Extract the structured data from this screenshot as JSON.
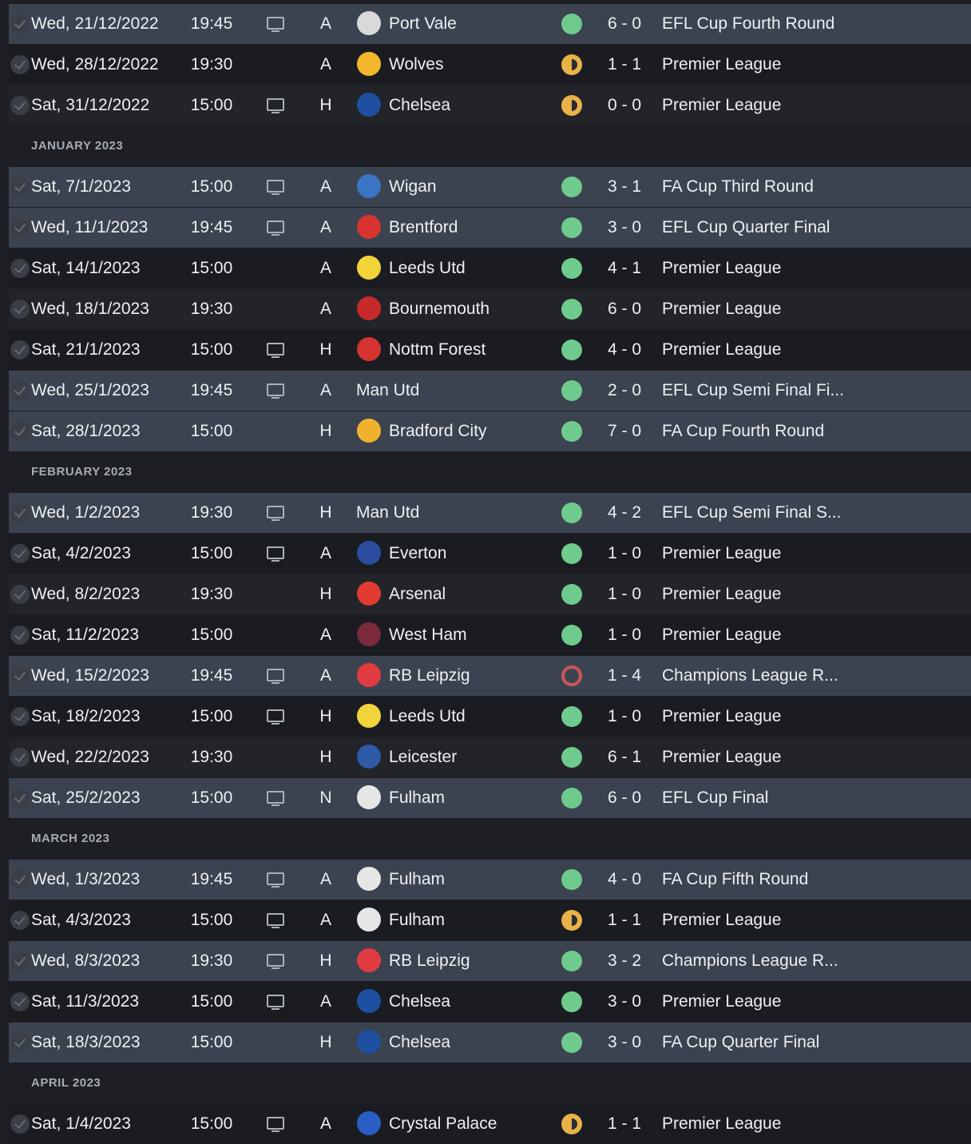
{
  "fixtures": {
    "sections": [
      {
        "month": "",
        "rows": [
          {
            "date": "Wed, 21/12/2022",
            "time": "19:45",
            "tv": true,
            "venue": "A",
            "opponent": "Port Vale",
            "badge_color": "#d9d9d9",
            "result": "win",
            "score": "6 - 0",
            "competition": "EFL Cup Fourth Round",
            "highlight": true
          },
          {
            "date": "Wed, 28/12/2022",
            "time": "19:30",
            "tv": false,
            "venue": "A",
            "opponent": "Wolves",
            "badge_color": "#f2b72a",
            "result": "draw",
            "score": "1 - 1",
            "competition": "Premier League",
            "highlight": false
          },
          {
            "date": "Sat, 31/12/2022",
            "time": "15:00",
            "tv": true,
            "venue": "H",
            "opponent": "Chelsea",
            "badge_color": "#1e4fa0",
            "result": "draw",
            "score": "0 - 0",
            "competition": "Premier League",
            "highlight": false
          }
        ]
      },
      {
        "month": "JANUARY 2023",
        "rows": [
          {
            "date": "Sat, 7/1/2023",
            "time": "15:00",
            "tv": true,
            "venue": "A",
            "opponent": "Wigan",
            "badge_color": "#3a74c4",
            "result": "win",
            "score": "3 - 1",
            "competition": "FA Cup Third Round",
            "highlight": true
          },
          {
            "date": "Wed, 11/1/2023",
            "time": "19:45",
            "tv": true,
            "venue": "A",
            "opponent": "Brentford",
            "badge_color": "#d8342f",
            "result": "win",
            "score": "3 - 0",
            "competition": "EFL Cup Quarter Final",
            "highlight": true
          },
          {
            "date": "Sat, 14/1/2023",
            "time": "15:00",
            "tv": false,
            "venue": "A",
            "opponent": "Leeds Utd",
            "badge_color": "#f1d33a",
            "result": "win",
            "score": "4 - 1",
            "competition": "Premier League",
            "highlight": false
          },
          {
            "date": "Wed, 18/1/2023",
            "time": "19:30",
            "tv": false,
            "venue": "A",
            "opponent": "Bournemouth",
            "badge_color": "#c7282c",
            "result": "win",
            "score": "6 - 0",
            "competition": "Premier League",
            "highlight": false
          },
          {
            "date": "Sat, 21/1/2023",
            "time": "15:00",
            "tv": true,
            "venue": "H",
            "opponent": "Nottm Forest",
            "badge_color": "#d5332f",
            "result": "win",
            "score": "4 - 0",
            "competition": "Premier League",
            "highlight": false
          },
          {
            "date": "Wed, 25/1/2023",
            "time": "19:45",
            "tv": true,
            "venue": "A",
            "opponent": "Man Utd",
            "badge_color": "",
            "result": "win",
            "score": "2 - 0",
            "competition": "EFL Cup Semi Final Fi...",
            "highlight": true
          },
          {
            "date": "Sat, 28/1/2023",
            "time": "15:00",
            "tv": false,
            "venue": "H",
            "opponent": "Bradford City",
            "badge_color": "#f0b22c",
            "result": "win",
            "score": "7 - 0",
            "competition": "FA Cup Fourth Round",
            "highlight": true
          }
        ]
      },
      {
        "month": "FEBRUARY 2023",
        "rows": [
          {
            "date": "Wed, 1/2/2023",
            "time": "19:30",
            "tv": true,
            "venue": "H",
            "opponent": "Man Utd",
            "badge_color": "",
            "result": "win",
            "score": "4 - 2",
            "competition": "EFL Cup Semi Final S...",
            "highlight": true
          },
          {
            "date": "Sat, 4/2/2023",
            "time": "15:00",
            "tv": true,
            "venue": "A",
            "opponent": "Everton",
            "badge_color": "#2a4da0",
            "result": "win",
            "score": "1 - 0",
            "competition": "Premier League",
            "highlight": false
          },
          {
            "date": "Wed, 8/2/2023",
            "time": "19:30",
            "tv": false,
            "venue": "H",
            "opponent": "Arsenal",
            "badge_color": "#e03a33",
            "result": "win",
            "score": "1 - 0",
            "competition": "Premier League",
            "highlight": false
          },
          {
            "date": "Sat, 11/2/2023",
            "time": "15:00",
            "tv": false,
            "venue": "A",
            "opponent": "West Ham",
            "badge_color": "#7a2a3c",
            "result": "win",
            "score": "1 - 0",
            "competition": "Premier League",
            "highlight": false
          },
          {
            "date": "Wed, 15/2/2023",
            "time": "19:45",
            "tv": true,
            "venue": "A",
            "opponent": "RB Leipzig",
            "badge_color": "#e13b42",
            "result": "loss",
            "score": "1 - 4",
            "competition": "Champions League R...",
            "highlight": true
          },
          {
            "date": "Sat, 18/2/2023",
            "time": "15:00",
            "tv": true,
            "venue": "H",
            "opponent": "Leeds Utd",
            "badge_color": "#f1d33a",
            "result": "win",
            "score": "1 - 0",
            "competition": "Premier League",
            "highlight": false
          },
          {
            "date": "Wed, 22/2/2023",
            "time": "19:30",
            "tv": false,
            "venue": "H",
            "opponent": "Leicester",
            "badge_color": "#2e5aa8",
            "result": "win",
            "score": "6 - 1",
            "competition": "Premier League",
            "highlight": false
          },
          {
            "date": "Sat, 25/2/2023",
            "time": "15:00",
            "tv": true,
            "venue": "N",
            "opponent": "Fulham",
            "badge_color": "#e6e6e6",
            "result": "win",
            "score": "6 - 0",
            "competition": "EFL Cup Final",
            "highlight": true
          }
        ]
      },
      {
        "month": "MARCH 2023",
        "rows": [
          {
            "date": "Wed, 1/3/2023",
            "time": "19:45",
            "tv": true,
            "venue": "A",
            "opponent": "Fulham",
            "badge_color": "#e6e6e6",
            "result": "win",
            "score": "4 - 0",
            "competition": "FA Cup Fifth Round",
            "highlight": true
          },
          {
            "date": "Sat, 4/3/2023",
            "time": "15:00",
            "tv": true,
            "venue": "A",
            "opponent": "Fulham",
            "badge_color": "#e6e6e6",
            "result": "draw",
            "score": "1 - 1",
            "competition": "Premier League",
            "highlight": false
          },
          {
            "date": "Wed, 8/3/2023",
            "time": "19:30",
            "tv": true,
            "venue": "H",
            "opponent": "RB Leipzig",
            "badge_color": "#e13b42",
            "result": "win",
            "score": "3 - 2",
            "competition": "Champions League R...",
            "highlight": true
          },
          {
            "date": "Sat, 11/3/2023",
            "time": "15:00",
            "tv": true,
            "venue": "A",
            "opponent": "Chelsea",
            "badge_color": "#1e4fa0",
            "result": "win",
            "score": "3 - 0",
            "competition": "Premier League",
            "highlight": false
          },
          {
            "date": "Sat, 18/3/2023",
            "time": "15:00",
            "tv": false,
            "venue": "H",
            "opponent": "Chelsea",
            "badge_color": "#1e4fa0",
            "result": "win",
            "score": "3 - 0",
            "competition": "FA Cup Quarter Final",
            "highlight": true
          }
        ]
      },
      {
        "month": "APRIL 2023",
        "rows": [
          {
            "date": "Sat, 1/4/2023",
            "time": "15:00",
            "tv": true,
            "venue": "A",
            "opponent": "Crystal Palace",
            "badge_color": "#2a5ec4",
            "result": "draw",
            "score": "1 - 1",
            "competition": "Premier League",
            "highlight": false
          }
        ]
      }
    ]
  }
}
